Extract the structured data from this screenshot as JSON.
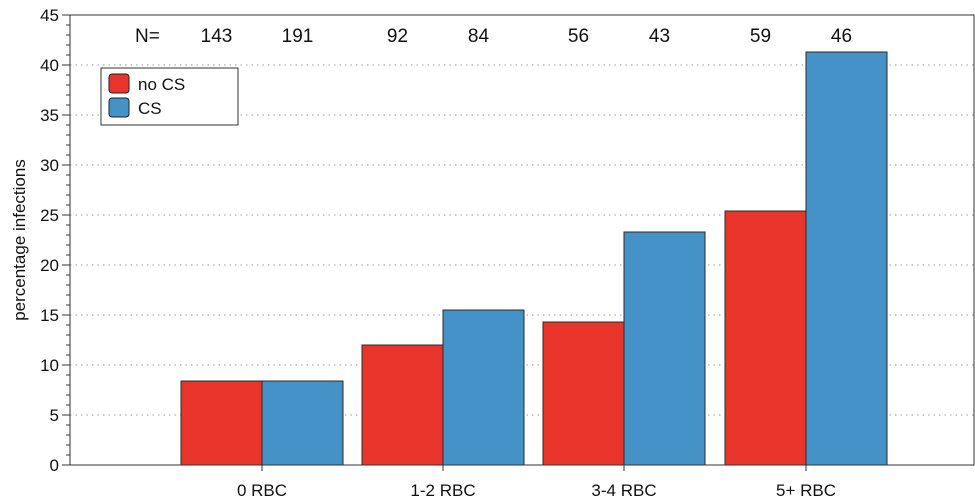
{
  "chart_data": {
    "type": "bar",
    "title": "",
    "xlabel": "",
    "ylabel": "percentage infections",
    "ylim": [
      0,
      45
    ],
    "yticks": [
      0,
      5,
      10,
      15,
      20,
      25,
      30,
      35,
      40,
      45
    ],
    "grid": true,
    "legend_position": "top-left",
    "categories": [
      "0 RBC",
      "1-2 RBC",
      "3-4 RBC",
      "5+ RBC"
    ],
    "series": [
      {
        "name": "no CS",
        "color": "#e8342a",
        "values": [
          8.4,
          12.0,
          14.3,
          25.4
        ],
        "n": [
          143,
          92,
          56,
          59
        ]
      },
      {
        "name": "CS",
        "color": "#4492c8",
        "values": [
          8.4,
          15.5,
          23.3,
          41.3
        ],
        "n": [
          191,
          84,
          43,
          46
        ]
      }
    ],
    "n_label": "N="
  }
}
